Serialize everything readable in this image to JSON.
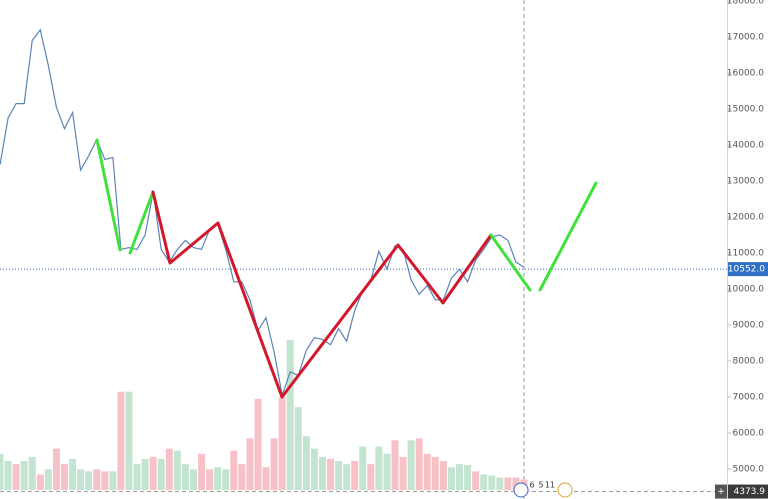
{
  "chart_data": {
    "type": "line",
    "color": "#5b84b6",
    "values": [
      13450,
      14750,
      15150,
      15150,
      16900,
      17200,
      16200,
      15050,
      14450,
      14900,
      13300,
      13700,
      14150,
      13600,
      13650,
      11100,
      11150,
      11100,
      11500,
      12700,
      11100,
      10750,
      11100,
      11350,
      11150,
      11100,
      11650,
      11800,
      11100,
      10200,
      10200,
      9700,
      8850,
      9200,
      8250,
      7050,
      7700,
      7600,
      8300,
      8650,
      8600,
      8450,
      8900,
      8550,
      9400,
      9950,
      10250,
      11050,
      10550,
      11200,
      11100,
      10250,
      9850,
      10100,
      9700,
      9700,
      10300,
      10550,
      10200,
      10800,
      11100,
      11450,
      11500,
      11350,
      10750,
      10600
    ],
    "ylim": [
      4167,
      18028
    ],
    "yticks": [
      {
        "value": 18000,
        "label": "18000.0"
      },
      {
        "value": 17000,
        "label": "17000.0"
      },
      {
        "value": 16000,
        "label": "16000.0"
      },
      {
        "value": 15000,
        "label": "15000.0"
      },
      {
        "value": 14000,
        "label": "14000.0"
      },
      {
        "value": 13000,
        "label": "13000.0"
      },
      {
        "value": 12000,
        "label": "12000.0"
      },
      {
        "value": 11000,
        "label": "11000.0"
      },
      {
        "value": 10000,
        "label": "10000.0"
      },
      {
        "value": 9000,
        "label": "9000.0"
      },
      {
        "value": 8000,
        "label": "8000.0"
      },
      {
        "value": 7000,
        "label": "7000.0"
      },
      {
        "value": 6000,
        "label": "6000.0"
      },
      {
        "value": 5000,
        "label": "5000.0"
      }
    ],
    "current_price": {
      "value": 10552,
      "label": "10552.0",
      "color": "#2f6fc7"
    },
    "crosshair_price": {
      "value": 4373.9,
      "label": "4373.9",
      "color": "#3a3a3a"
    },
    "volume": {
      "values": [
        35,
        28,
        25,
        28,
        32,
        15,
        20,
        40,
        25,
        30,
        20,
        18,
        20,
        18,
        18,
        95,
        95,
        25,
        30,
        32,
        30,
        40,
        38,
        25,
        20,
        35,
        20,
        22,
        20,
        38,
        25,
        50,
        88,
        22,
        50,
        90,
        145,
        80,
        52,
        40,
        32,
        30,
        28,
        25,
        28,
        42,
        25,
        42,
        35,
        48,
        32,
        48,
        50,
        35,
        32,
        28,
        22,
        25,
        24,
        18,
        15,
        14,
        12,
        12,
        12,
        10
      ],
      "colors": [
        "g",
        "g",
        "r",
        "g",
        "g",
        "r",
        "g",
        "r",
        "r",
        "g",
        "g",
        "g",
        "r",
        "r",
        "g",
        "r",
        "g",
        "g",
        "g",
        "r",
        "g",
        "r",
        "g",
        "g",
        "g",
        "r",
        "r",
        "g",
        "g",
        "r",
        "r",
        "r",
        "r",
        "r",
        "r",
        "r",
        "g",
        "g",
        "g",
        "g",
        "g",
        "r",
        "g",
        "g",
        "r",
        "g",
        "r",
        "g",
        "g",
        "r",
        "r",
        "g",
        "r",
        "r",
        "r",
        "r",
        "g",
        "g",
        "g",
        "r",
        "g",
        "g",
        "g",
        "r",
        "r",
        "r"
      ],
      "up_color": "#b9dfc9",
      "down_color": "#f4b6bd"
    },
    "event_labels": [
      "6",
      "5",
      "11"
    ],
    "crosshair_button": "+"
  }
}
